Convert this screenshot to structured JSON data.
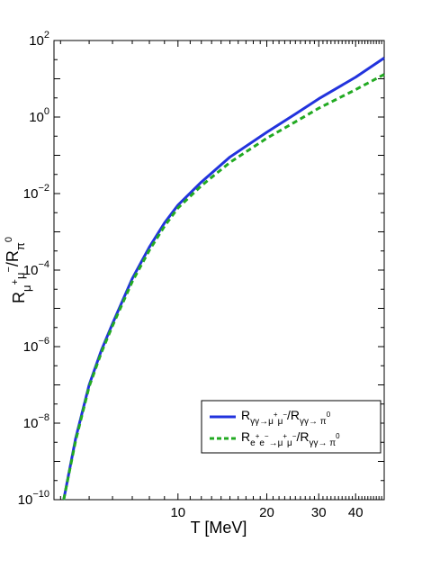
{
  "chart_data": {
    "type": "line",
    "xlabel": "T [MeV]",
    "ylabel": "R",
    "xscale": "log",
    "yscale": "log",
    "xlim": [
      3.8,
      50
    ],
    "ylim": [
      1e-10,
      100
    ],
    "x_ticks": [
      {
        "value": 10,
        "label": "10"
      },
      {
        "value": 20,
        "label": "20"
      },
      {
        "value": 30,
        "label": "30"
      },
      {
        "value": 40,
        "label": "40"
      }
    ],
    "y_ticks": [
      {
        "value": 1e-10,
        "base": "10",
        "exp": "−10"
      },
      {
        "value": 1e-08,
        "base": "10",
        "exp": "−8"
      },
      {
        "value": 1e-06,
        "base": "10",
        "exp": "−6"
      },
      {
        "value": 0.0001,
        "base": "10",
        "exp": "−4"
      },
      {
        "value": 0.01,
        "base": "10",
        "exp": "−2"
      },
      {
        "value": 1,
        "base": "10",
        "exp": "0"
      },
      {
        "value": 100,
        "base": "10",
        "exp": "2"
      }
    ],
    "legend_position": "bottom-right",
    "series": [
      {
        "name": "R",
        "color": "#2233dd",
        "style": "solid",
        "x": [
          4.1,
          4.5,
          5,
          5.5,
          6,
          7,
          8,
          9,
          10,
          12,
          15,
          20,
          25,
          30,
          40,
          50
        ],
        "y": [
          1e-10,
          4e-09,
          1e-07,
          8e-07,
          4e-06,
          6e-05,
          0.0004,
          0.0017,
          0.005,
          0.02,
          0.09,
          0.4,
          1.2,
          3,
          11,
          35
        ]
      },
      {
        "name": "R",
        "color": "#22aa22",
        "style": "dashed",
        "x": [
          4.1,
          4.5,
          5,
          5.5,
          6,
          7,
          8,
          9,
          10,
          12,
          15,
          20,
          25,
          30,
          40,
          50
        ],
        "y": [
          1e-10,
          3.5e-09,
          9e-08,
          7e-07,
          3.5e-06,
          5e-05,
          0.00033,
          0.0014,
          0.0042,
          0.016,
          0.065,
          0.28,
          0.75,
          1.7,
          5.2,
          13
        ]
      }
    ]
  }
}
